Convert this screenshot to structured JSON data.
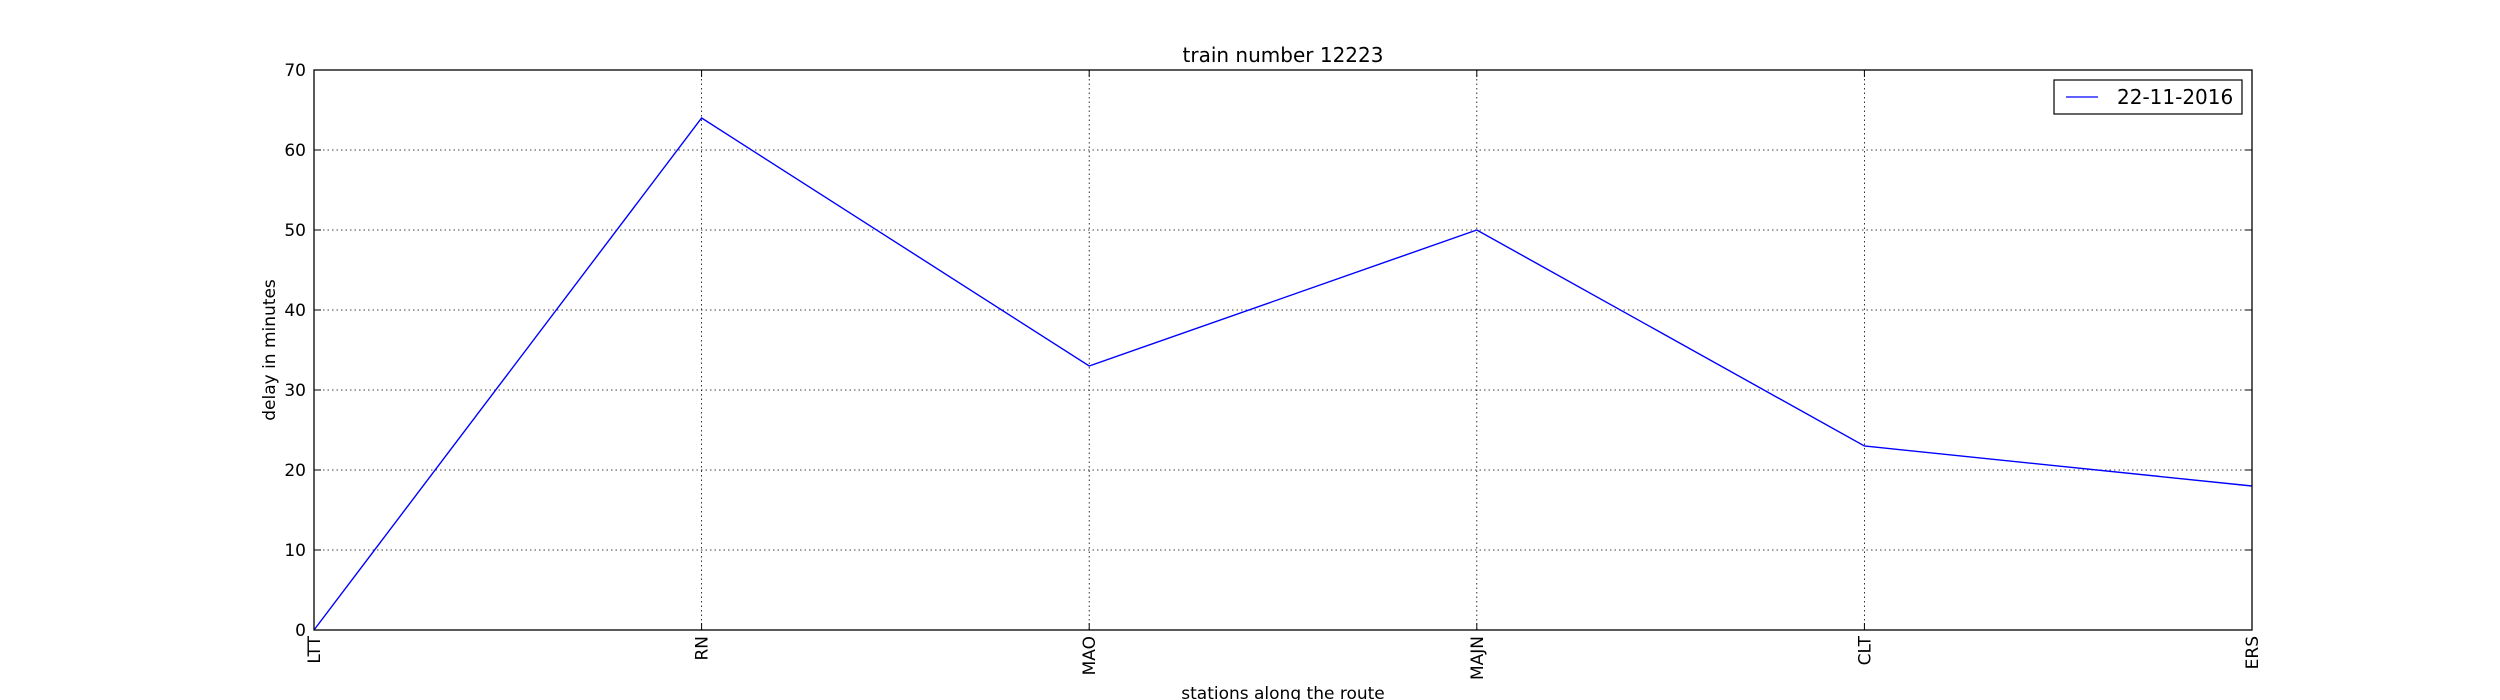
{
  "chart_data": {
    "type": "line",
    "title": "train number 12223",
    "xlabel": "stations along the route",
    "ylabel": "delay in minutes",
    "categories": [
      "LTT",
      "RN",
      "MAO",
      "MAJN",
      "CLT",
      "ERS"
    ],
    "series": [
      {
        "name": "22-11-2016",
        "values": [
          0,
          64,
          33,
          50,
          23,
          18
        ],
        "color": "#0000ff"
      }
    ],
    "ylim": [
      0,
      70
    ],
    "yticks": [
      0,
      10,
      20,
      30,
      40,
      50,
      60,
      70
    ],
    "grid": true,
    "legend_position": "top-right"
  }
}
